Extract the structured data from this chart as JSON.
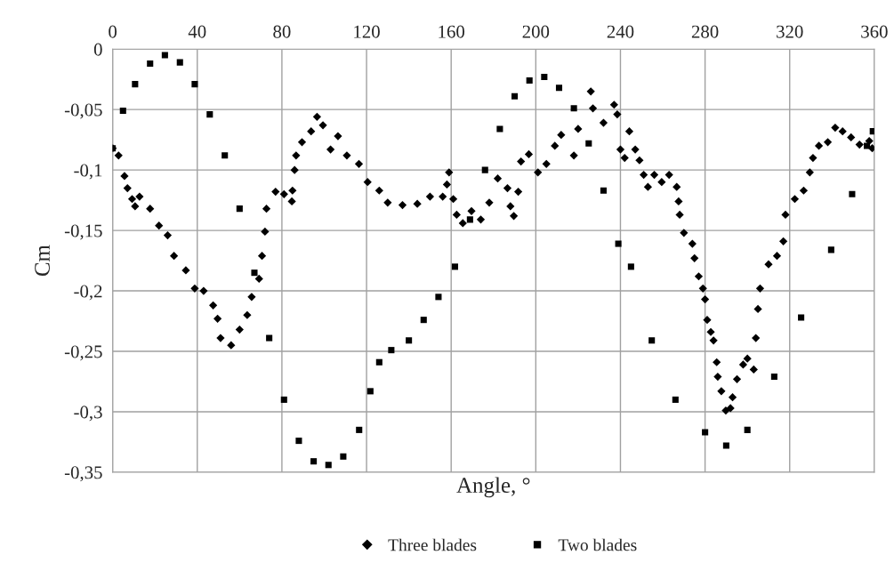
{
  "chart_data": {
    "type": "scatter",
    "xlabel": "Angle, °",
    "ylabel": "Cm",
    "xlim": [
      0,
      360
    ],
    "xticks": [
      0,
      40,
      80,
      120,
      160,
      200,
      240,
      280,
      320,
      360
    ],
    "ylim": [
      -0.35,
      0
    ],
    "yticks": [
      0,
      {
        "value": -0.05,
        "label": "-0,05"
      },
      {
        "value": -0.1,
        "label": "-0,1"
      },
      {
        "value": -0.15,
        "label": "-0,15"
      },
      {
        "value": -0.2,
        "label": "-0,2"
      },
      {
        "value": -0.25,
        "label": "-0,25"
      },
      {
        "value": -0.3,
        "label": "-0,3"
      },
      {
        "value": -0.35,
        "label": "-0,35"
      }
    ],
    "grid": true,
    "legend": "bottom",
    "series": [
      {
        "name": "Three blades",
        "color": "#000000",
        "marker": "diamond",
        "x": [
          0,
          2.8,
          5.6,
          7,
          9.2,
          10.6,
          12.7,
          17.7,
          21.9,
          26,
          29,
          34.6,
          38.8,
          43,
          47.5,
          49.6,
          51,
          56,
          60,
          63.6,
          65.7,
          69.2,
          70.6,
          72,
          72.7,
          77,
          81,
          84.7,
          85,
          86,
          86.7,
          89.5,
          93.8,
          96.6,
          99.4,
          103,
          106.5,
          110.7,
          116.4,
          120.5,
          126,
          130,
          137,
          144,
          150,
          156,
          158,
          159,
          161,
          162.6,
          165.5,
          169.6,
          174,
          178,
          182,
          186.6,
          188,
          189.6,
          191.7,
          193,
          196.7,
          201,
          205,
          209,
          212,
          218,
          220,
          226,
          227,
          232,
          237,
          238.5,
          240,
          242,
          244.2,
          247,
          249,
          251,
          253,
          256,
          259.5,
          263,
          266.6,
          267.5,
          268,
          270,
          274,
          275,
          277,
          279,
          280,
          281,
          282.7,
          284,
          285.5,
          286,
          287.7,
          289.8,
          292,
          293,
          295.1,
          298,
          300,
          303,
          304,
          305,
          306,
          310,
          314,
          317,
          318,
          322.4,
          326.6,
          329.5,
          331,
          333.8,
          338,
          341.5,
          345,
          349,
          353,
          357.6,
          359
        ],
        "values": [
          -0.082,
          -0.088,
          -0.105,
          -0.115,
          -0.124,
          -0.13,
          -0.122,
          -0.132,
          -0.146,
          -0.154,
          -0.171,
          -0.183,
          -0.198,
          -0.2,
          -0.212,
          -0.223,
          -0.239,
          -0.245,
          -0.232,
          -0.22,
          -0.205,
          -0.19,
          -0.171,
          -0.151,
          -0.132,
          -0.118,
          -0.12,
          -0.126,
          -0.117,
          -0.1,
          -0.088,
          -0.077,
          -0.068,
          -0.056,
          -0.063,
          -0.083,
          -0.072,
          -0.088,
          -0.095,
          -0.11,
          -0.117,
          -0.127,
          -0.129,
          -0.128,
          -0.122,
          -0.122,
          -0.112,
          -0.102,
          -0.124,
          -0.137,
          -0.144,
          -0.134,
          -0.141,
          -0.127,
          -0.107,
          -0.115,
          -0.13,
          -0.138,
          -0.118,
          -0.093,
          -0.087,
          -0.102,
          -0.095,
          -0.08,
          -0.071,
          -0.088,
          -0.066,
          -0.035,
          -0.049,
          -0.061,
          -0.046,
          -0.054,
          -0.083,
          -0.09,
          -0.068,
          -0.083,
          -0.092,
          -0.104,
          -0.114,
          -0.104,
          -0.11,
          -0.104,
          -0.114,
          -0.126,
          -0.137,
          -0.152,
          -0.161,
          -0.173,
          -0.188,
          -0.198,
          -0.207,
          -0.224,
          -0.234,
          -0.241,
          -0.259,
          -0.271,
          -0.283,
          -0.299,
          -0.297,
          -0.288,
          -0.273,
          -0.261,
          -0.256,
          -0.265,
          -0.239,
          -0.215,
          -0.198,
          -0.178,
          -0.171,
          -0.159,
          -0.137,
          -0.124,
          -0.117,
          -0.102,
          -0.09,
          -0.08,
          -0.077,
          -0.065,
          -0.068,
          -0.073,
          -0.079,
          -0.076,
          -0.082
        ]
      },
      {
        "name": "Two blades",
        "color": "#000000",
        "marker": "square",
        "x": [
          0,
          4.9,
          10.6,
          17.7,
          24.7,
          31.8,
          38.8,
          45.9,
          53,
          60,
          67,
          74,
          81,
          88,
          95,
          102,
          109,
          116.5,
          121.8,
          126,
          131.7,
          140,
          147,
          154,
          161.8,
          168.9,
          176,
          183,
          190,
          197,
          204,
          211,
          218,
          225,
          232,
          239,
          245,
          254.8,
          266,
          280,
          290,
          300,
          312.7,
          325.4,
          339.6,
          349.5,
          356.5,
          359.3
        ],
        "values": [
          -0.082,
          -0.051,
          -0.029,
          -0.012,
          -0.005,
          -0.011,
          -0.029,
          -0.054,
          -0.088,
          -0.132,
          -0.185,
          -0.239,
          -0.29,
          -0.324,
          -0.341,
          -0.344,
          -0.337,
          -0.315,
          -0.283,
          -0.259,
          -0.249,
          -0.241,
          -0.224,
          -0.205,
          -0.18,
          -0.141,
          -0.1,
          -0.066,
          -0.039,
          -0.026,
          -0.023,
          -0.032,
          -0.049,
          -0.078,
          -0.117,
          -0.161,
          -0.18,
          -0.241,
          -0.29,
          -0.317,
          -0.328,
          -0.315,
          -0.271,
          -0.222,
          -0.166,
          -0.12,
          -0.08,
          -0.068
        ]
      }
    ]
  }
}
